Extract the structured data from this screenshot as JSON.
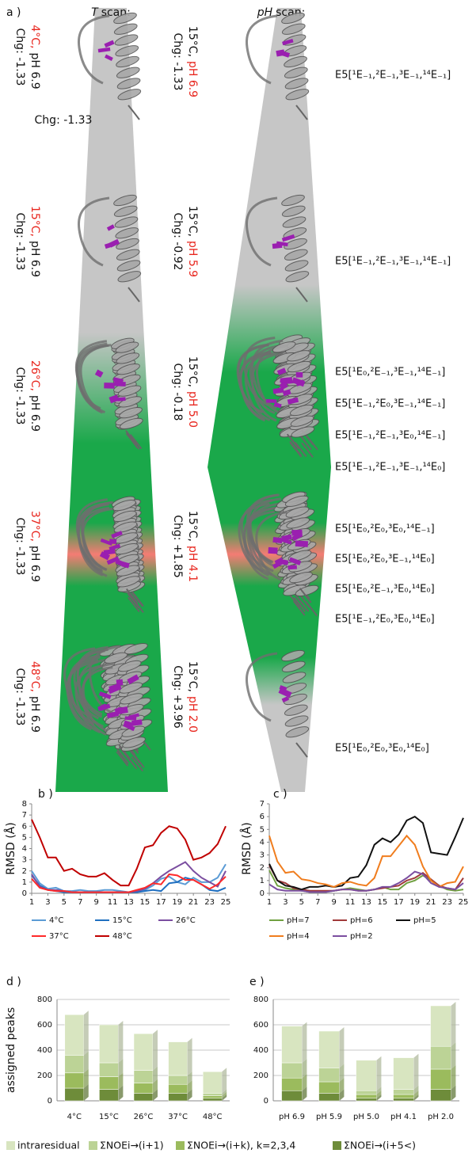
{
  "panel_a": {
    "label": "a )",
    "t_scan": {
      "var": "T",
      "text": "scan:"
    },
    "ph_scan": {
      "var": "pH",
      "text": "scan:"
    },
    "t_rows": [
      {
        "temp": "4°C,",
        "ph": "pH 6.9",
        "charge": "Chg: -1.33"
      },
      {
        "temp": "15°C,",
        "ph": "pH 6.9",
        "charge": "Chg: -1.33"
      },
      {
        "temp": "26°C,",
        "ph": "pH 6.9",
        "charge": "Chg: -1.33"
      },
      {
        "temp": "37°C,",
        "ph": "pH 6.9",
        "charge": "Chg: -1.33"
      },
      {
        "temp": "48°C,",
        "ph": "pH 6.9",
        "charge": "Chg: -1.33"
      }
    ],
    "extra_charge": "Chg: -1.33",
    "ph_rows": [
      {
        "temp": "15°C,",
        "ph": "pH 6.9",
        "charge": "Chg: -1.33"
      },
      {
        "temp": "15°C,",
        "ph": "pH 5.9",
        "charge": "Chg: -0.92"
      },
      {
        "temp": "15°C,",
        "ph": "pH 5.0",
        "charge": "Chg: -0.18"
      },
      {
        "temp": "15°C,",
        "ph": "pH 4.1",
        "charge": "Chg: +1.85"
      },
      {
        "temp": "15°C,",
        "ph": "pH 2.0",
        "charge": "Chg: +3.96"
      }
    ],
    "states": [
      [
        {
          "text": "E5[¹E₋₁,²E₋₁,³E₋₁,¹⁴E₋₁]",
          "color": "#a0a0a0"
        }
      ],
      [
        {
          "text": "E5[¹E₋₁,²E₋₁,³E₋₁,¹⁴E₋₁]",
          "color": "#111111"
        }
      ],
      [
        {
          "text": "E5[¹E₀,²E₋₁,³E₋₁,¹⁴E₋₁]",
          "color": "#111111"
        },
        {
          "text": "E5[¹E₋₁,²E₀,³E₋₁,¹⁴E₋₁]",
          "color": "#111111"
        },
        {
          "text": "E5[¹E₋₁,²E₋₁,³E₀,¹⁴E₋₁]",
          "color": "#111111"
        },
        {
          "text": "E5[¹E₋₁,²E₋₁,³E₋₁,¹⁴E₀]",
          "color": "#111111"
        }
      ],
      [
        {
          "text": "E5[¹E₀,²E₀,³E₀,¹⁴E₋₁]",
          "color": "#f08a3a"
        },
        {
          "text": "E5[¹E₀,²E₀,³E₋₁,¹⁴E₀]",
          "color": "#1aaee0"
        },
        {
          "text": "E5[¹E₀,²E₋₁,³E₀,¹⁴E₀]",
          "color": "#e6c01c"
        },
        {
          "text": "E5[¹E₋₁,²E₀,³E₀,¹⁴E₀]",
          "color": "#3a6fd8"
        }
      ],
      [
        {
          "text": "E5[¹E₀,²E₀,³E₀,¹⁴E₀]",
          "color": "#111111"
        }
      ]
    ]
  },
  "chart_data": [
    {
      "type": "line",
      "panel": "b )",
      "ylabel": "RMSD (Å)",
      "x": [
        1,
        2,
        3,
        4,
        5,
        6,
        7,
        8,
        9,
        10,
        11,
        12,
        13,
        14,
        15,
        16,
        17,
        18,
        19,
        20,
        21,
        22,
        23,
        24,
        25
      ],
      "xlim": [
        1,
        25
      ],
      "xticks": [
        1,
        3,
        5,
        7,
        9,
        11,
        13,
        15,
        17,
        19,
        21,
        23,
        25
      ],
      "ylim": [
        0,
        8
      ],
      "yticks": [
        0,
        1,
        2,
        3,
        4,
        5,
        6,
        7,
        8
      ],
      "series": [
        {
          "name": "4°C",
          "color": "#5b9bd5",
          "values": [
            2.0,
            0.9,
            0.4,
            0.5,
            0.2,
            0.2,
            0.3,
            0.2,
            0.2,
            0.3,
            0.3,
            0.2,
            0.1,
            0.2,
            0.3,
            0.7,
            1.3,
            1.5,
            1.0,
            0.8,
            1.4,
            1.0,
            1.0,
            1.4,
            2.6
          ]
        },
        {
          "name": "15°C",
          "color": "#1f6fc0",
          "values": [
            1.6,
            0.7,
            0.3,
            0.2,
            0.1,
            0.1,
            0.1,
            0.1,
            0.1,
            0.1,
            0.1,
            0.1,
            0.1,
            0.1,
            0.2,
            0.3,
            0.2,
            0.9,
            1.0,
            1.4,
            1.2,
            0.8,
            0.3,
            0.2,
            0.5
          ]
        },
        {
          "name": "26°C",
          "color": "#7b4ea0",
          "values": [
            1.7,
            0.6,
            0.3,
            0.3,
            0.2,
            0.1,
            0.1,
            0.1,
            0.1,
            0.1,
            0.1,
            0.1,
            0.1,
            0.2,
            0.4,
            0.9,
            1.5,
            2.0,
            2.4,
            2.8,
            2.0,
            1.4,
            1.0,
            0.6,
            2.0
          ]
        },
        {
          "name": "37°C",
          "color": "#ff2a2a",
          "values": [
            1.3,
            0.5,
            0.3,
            0.2,
            0.2,
            0.1,
            0.1,
            0.1,
            0.1,
            0.1,
            0.1,
            0.1,
            0.1,
            0.3,
            0.5,
            0.9,
            0.8,
            1.7,
            1.6,
            1.2,
            1.2,
            0.8,
            0.4,
            0.8,
            1.5
          ]
        },
        {
          "name": "48°C",
          "color": "#c00000",
          "values": [
            6.6,
            5.0,
            3.2,
            3.2,
            2.0,
            2.2,
            1.7,
            1.5,
            1.5,
            1.8,
            1.2,
            0.7,
            0.7,
            2.2,
            4.1,
            4.3,
            5.4,
            6.0,
            5.8,
            4.8,
            3.0,
            3.2,
            3.6,
            4.4,
            6.0
          ]
        }
      ]
    },
    {
      "type": "line",
      "panel": "c )",
      "ylabel": "RMSD (Å)",
      "x": [
        1,
        2,
        3,
        4,
        5,
        6,
        7,
        8,
        9,
        10,
        11,
        12,
        13,
        14,
        15,
        16,
        17,
        18,
        19,
        20,
        21,
        22,
        23,
        24,
        25
      ],
      "xlim": [
        1,
        25
      ],
      "xticks": [
        1,
        3,
        5,
        7,
        9,
        11,
        13,
        15,
        17,
        19,
        21,
        23,
        25
      ],
      "ylim": [
        0,
        7
      ],
      "yticks": [
        0,
        1,
        2,
        3,
        4,
        5,
        6,
        7
      ],
      "series": [
        {
          "name": "pH=7",
          "color": "#70a040",
          "values": [
            1.8,
            0.6,
            0.4,
            0.3,
            0.2,
            0.1,
            0.1,
            0.1,
            0.2,
            0.3,
            0.4,
            0.3,
            0.2,
            0.3,
            0.5,
            0.3,
            0.3,
            0.8,
            1.0,
            1.4,
            1.0,
            0.6,
            0.3,
            0.2,
            0.3
          ]
        },
        {
          "name": "pH=6",
          "color": "#a03a3a",
          "values": [
            2.2,
            1.0,
            0.8,
            0.4,
            0.3,
            0.2,
            0.2,
            0.2,
            0.2,
            0.3,
            0.3,
            0.2,
            0.2,
            0.3,
            0.4,
            0.5,
            0.6,
            1.0,
            1.2,
            1.6,
            1.1,
            0.6,
            0.4,
            0.3,
            1.2
          ]
        },
        {
          "name": "pH=5",
          "color": "#111111",
          "values": [
            2.3,
            1.0,
            0.6,
            0.5,
            0.3,
            0.5,
            0.5,
            0.6,
            0.5,
            0.6,
            1.2,
            1.3,
            2.2,
            3.8,
            4.3,
            4.0,
            4.6,
            5.7,
            6.0,
            5.5,
            3.2,
            3.1,
            3.0,
            4.4,
            5.9
          ]
        },
        {
          "name": "pH=4",
          "color": "#f07d1e",
          "values": [
            4.5,
            2.5,
            1.6,
            1.7,
            1.1,
            1.0,
            0.8,
            0.7,
            0.5,
            0.8,
            0.9,
            0.7,
            0.6,
            1.2,
            2.9,
            2.9,
            3.7,
            4.5,
            3.8,
            2.1,
            1.0,
            0.5,
            0.8,
            0.9,
            2.1
          ]
        },
        {
          "name": "pH=2",
          "color": "#7b4ea0",
          "values": [
            0.7,
            0.3,
            0.2,
            0.2,
            0.2,
            0.1,
            0.1,
            0.1,
            0.2,
            0.3,
            0.3,
            0.2,
            0.2,
            0.3,
            0.5,
            0.5,
            0.8,
            1.2,
            1.7,
            1.5,
            0.8,
            0.5,
            0.4,
            0.3,
            0.8
          ]
        }
      ]
    },
    {
      "type": "bar",
      "stacked": true,
      "grid": true,
      "panel": "d )",
      "ylabel": "assigned peaks",
      "categories": [
        "4°C",
        "15°C",
        "26°C",
        "37°C",
        "48°C"
      ],
      "ylim": [
        0,
        800
      ],
      "yticks": [
        0,
        200,
        400,
        600,
        800
      ],
      "series": [
        {
          "name": "ΣNOEi→(i+5<)",
          "color": "#6e8c3a",
          "values": [
            100,
            90,
            60,
            60,
            20
          ]
        },
        {
          "name": "ΣNOEi→(i+k), k=2,3,4",
          "color": "#9bbb5d",
          "values": [
            120,
            100,
            80,
            70,
            20
          ]
        },
        {
          "name": "ΣNOEi→(i+1)",
          "color": "#bcd396",
          "values": [
            140,
            110,
            100,
            70,
            20
          ]
        },
        {
          "name": "intraresidual",
          "color": "#d8e5c0",
          "values": [
            320,
            300,
            290,
            265,
            170
          ]
        }
      ]
    },
    {
      "type": "bar",
      "stacked": true,
      "grid": true,
      "panel": "e )",
      "categories": [
        "pH 6.9",
        "pH 5.9",
        "pH 5.0",
        "pH 4.1",
        "pH 2.0"
      ],
      "ylim": [
        0,
        800
      ],
      "yticks": [
        0,
        200,
        400,
        600,
        800
      ],
      "series": [
        {
          "color": "#6e8c3a",
          "values": [
            80,
            60,
            20,
            20,
            90
          ]
        },
        {
          "color": "#9bbb5d",
          "values": [
            100,
            90,
            30,
            30,
            160
          ]
        },
        {
          "color": "#bcd396",
          "values": [
            120,
            110,
            30,
            40,
            180
          ]
        },
        {
          "color": "#d8e5c0",
          "values": [
            290,
            290,
            240,
            250,
            320
          ]
        }
      ]
    }
  ]
}
